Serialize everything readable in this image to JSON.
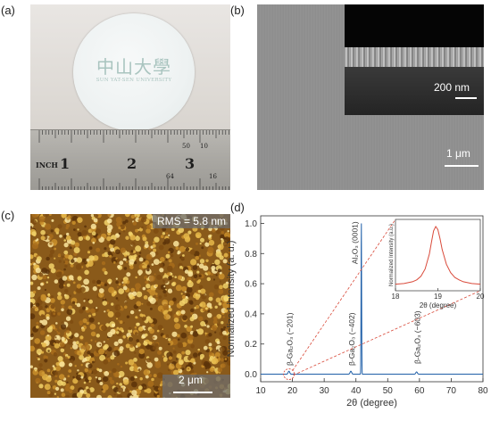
{
  "panels": {
    "a": {
      "label": "(a)",
      "logo_cn": "中山大學",
      "logo_en": "SUN YAT-SEN UNIVERSITY",
      "ruler_inch": "INCH",
      "ruler_nums": [
        "1",
        "2",
        "3"
      ],
      "ruler_small": [
        "50",
        "10",
        "64",
        "16"
      ]
    },
    "b": {
      "label": "(b)",
      "inset_scale": "200 nm",
      "scale": "1 μm"
    },
    "c": {
      "label": "(c)",
      "rms": "RMS = 5.8 nm",
      "scale": "2 μm"
    },
    "d": {
      "label": "(d)"
    }
  },
  "chart_data": [
    {
      "type": "line",
      "xlabel": "2θ (degree)",
      "ylabel": "Normalized intensity (a. u.)",
      "xlim": [
        10,
        80
      ],
      "ylim": [
        -0.05,
        1.05
      ],
      "xticks": [
        10,
        20,
        30,
        40,
        50,
        60,
        70,
        80
      ],
      "yticks": [
        0.0,
        0.2,
        0.4,
        0.6,
        0.8,
        1.0
      ],
      "color": "#1f5fa8",
      "peaks": [
        {
          "x": 18.9,
          "y": 0.02,
          "label": "β-Ga₂O₃ (−201)"
        },
        {
          "x": 38.4,
          "y": 0.02,
          "label": "β-Ga₂O₃ (−402)"
        },
        {
          "x": 41.7,
          "y": 1.0,
          "label": "Al₂O₃ (0001)"
        },
        {
          "x": 59.1,
          "y": 0.015,
          "label": "β-Ga₂O₃ (−603)"
        }
      ],
      "grid": false
    },
    {
      "type": "line",
      "xlabel": "2θ (degree)",
      "ylabel": "Normalized Intensity (a.u.)",
      "xlim": [
        18,
        20
      ],
      "xticks": [
        18,
        19,
        20
      ],
      "color": "#d94a3a",
      "x": [
        18.0,
        18.2,
        18.4,
        18.5,
        18.6,
        18.7,
        18.8,
        18.85,
        18.9,
        18.95,
        19.0,
        19.05,
        19.1,
        19.2,
        19.3,
        19.4,
        19.5,
        19.6,
        19.8,
        20.0
      ],
      "y": [
        0.05,
        0.06,
        0.09,
        0.12,
        0.18,
        0.3,
        0.55,
        0.75,
        0.93,
        1.0,
        0.95,
        0.8,
        0.62,
        0.38,
        0.24,
        0.16,
        0.12,
        0.09,
        0.06,
        0.05
      ],
      "grid": false
    }
  ]
}
